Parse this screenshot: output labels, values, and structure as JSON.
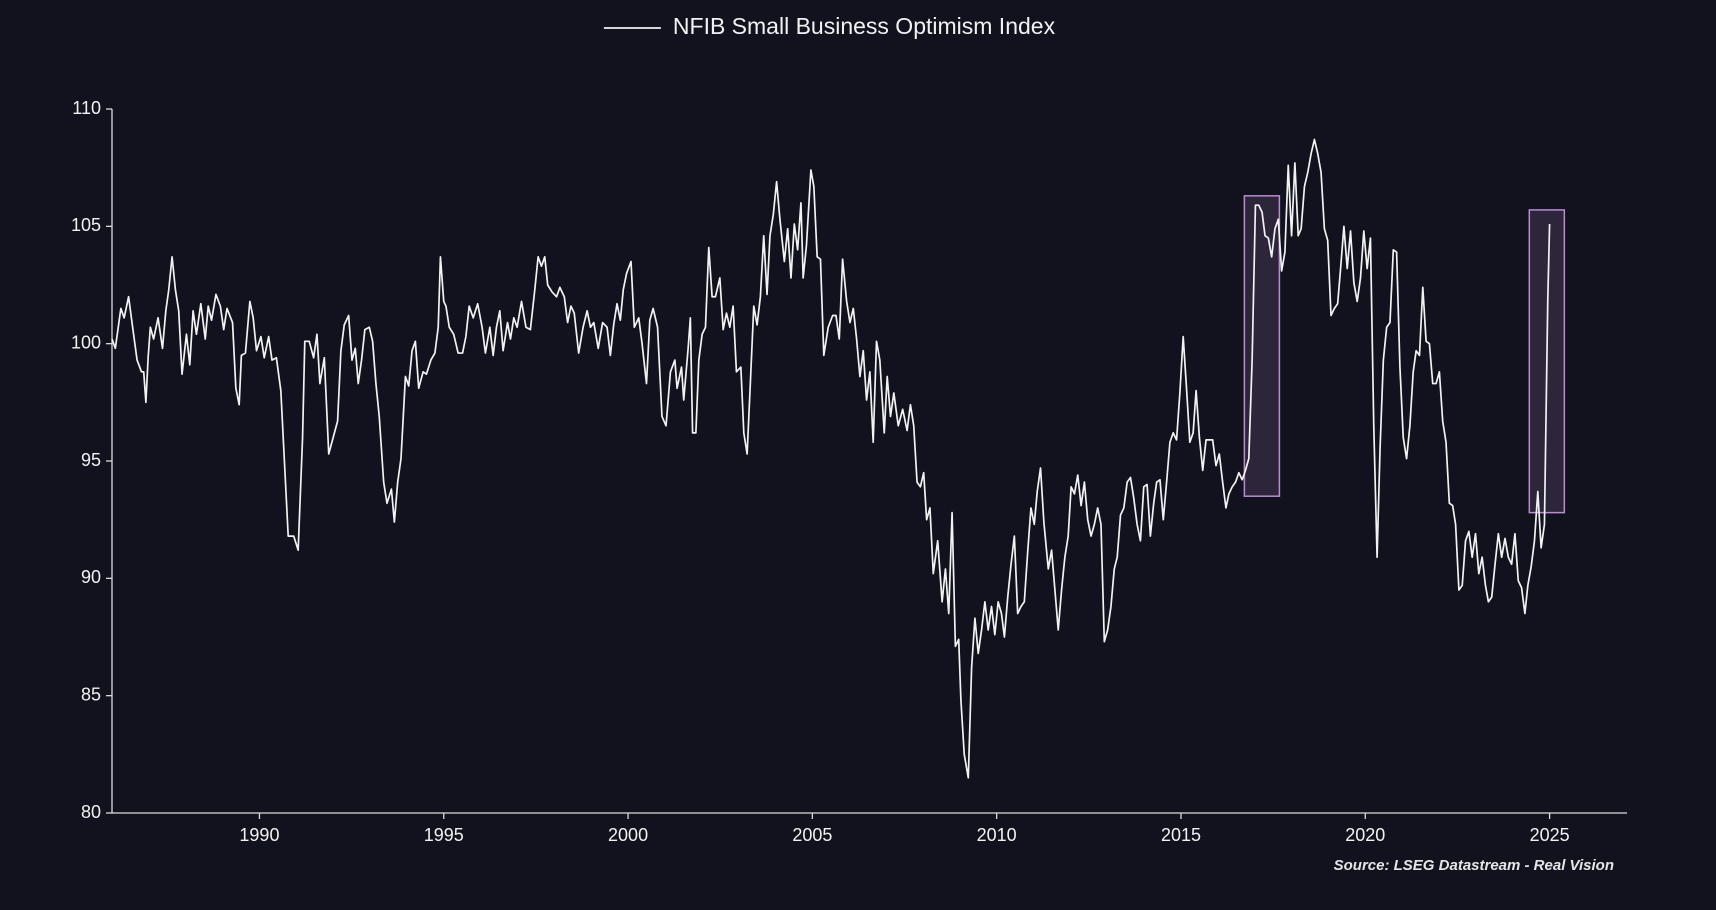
{
  "chart_data": {
    "type": "line",
    "source": "Source: LSEG Datastream - Real Vision",
    "legend_position": "top-center",
    "xlim": [
      1986,
      2027.1
    ],
    "ylim": [
      80,
      110
    ],
    "xticks": [
      1990,
      1995,
      2000,
      2005,
      2010,
      2015,
      2020,
      2025
    ],
    "yticks": [
      80,
      85,
      90,
      95,
      100,
      105,
      110
    ],
    "grid": false,
    "highlights": [
      {
        "xlim": [
          2016.72,
          2017.67
        ],
        "ylim": [
          93.5,
          106.3
        ],
        "color": "#b98ccf"
      },
      {
        "xlim": [
          2024.45,
          2025.4
        ],
        "ylim": [
          92.8,
          105.7
        ],
        "color": "#b98ccf"
      }
    ],
    "x": [
      1986.0,
      1986.09,
      1986.24,
      1986.33,
      1986.45,
      1986.56,
      1986.68,
      1986.8,
      1986.86,
      1986.92,
      1986.98,
      1987.04,
      1987.13,
      1987.25,
      1987.37,
      1987.46,
      1987.54,
      1987.63,
      1987.72,
      1987.81,
      1987.9,
      1988.02,
      1988.11,
      1988.2,
      1988.29,
      1988.41,
      1988.53,
      1988.61,
      1988.7,
      1988.82,
      1988.94,
      1989.03,
      1989.12,
      1989.27,
      1989.36,
      1989.45,
      1989.51,
      1989.62,
      1989.74,
      1989.83,
      1989.92,
      1990.04,
      1990.13,
      1990.25,
      1990.34,
      1990.46,
      1990.58,
      1990.69,
      1990.78,
      1990.93,
      1991.05,
      1991.17,
      1991.23,
      1991.35,
      1991.47,
      1991.56,
      1991.64,
      1991.76,
      1991.88,
      1992.0,
      1992.12,
      1992.21,
      1992.3,
      1992.42,
      1992.51,
      1992.6,
      1992.68,
      1992.77,
      1992.86,
      1992.98,
      1993.07,
      1993.16,
      1993.25,
      1993.37,
      1993.46,
      1993.58,
      1993.66,
      1993.75,
      1993.84,
      1993.96,
      1994.05,
      1994.14,
      1994.23,
      1994.32,
      1994.44,
      1994.53,
      1994.65,
      1994.76,
      1994.85,
      1994.91,
      1995.0,
      1995.06,
      1995.15,
      1995.27,
      1995.39,
      1995.51,
      1995.6,
      1995.69,
      1995.8,
      1995.92,
      1996.04,
      1996.13,
      1996.25,
      1996.34,
      1996.43,
      1996.52,
      1996.61,
      1996.73,
      1996.81,
      1996.9,
      1996.99,
      1997.11,
      1997.23,
      1997.35,
      1997.47,
      1997.56,
      1997.65,
      1997.74,
      1997.82,
      1997.94,
      1998.06,
      1998.15,
      1998.27,
      1998.36,
      1998.45,
      1998.54,
      1998.66,
      1998.78,
      1998.89,
      1998.98,
      1999.07,
      1999.19,
      1999.31,
      1999.43,
      1999.52,
      1999.61,
      1999.7,
      1999.79,
      1999.87,
      1999.96,
      2000.08,
      2000.17,
      2000.29,
      2000.38,
      2000.5,
      2000.59,
      2000.68,
      2000.8,
      2000.92,
      2001.03,
      2001.15,
      2001.27,
      2001.33,
      2001.45,
      2001.51,
      2001.63,
      2001.69,
      2001.75,
      2001.84,
      2001.92,
      2002.01,
      2002.1,
      2002.19,
      2002.28,
      2002.37,
      2002.49,
      2002.58,
      2002.67,
      2002.76,
      2002.85,
      2002.94,
      2003.06,
      2003.14,
      2003.23,
      2003.32,
      2003.41,
      2003.5,
      2003.59,
      2003.68,
      2003.77,
      2003.85,
      2003.94,
      2004.03,
      2004.12,
      2004.24,
      2004.33,
      2004.42,
      2004.51,
      2004.6,
      2004.69,
      2004.75,
      2004.84,
      2004.96,
      2005.04,
      2005.13,
      2005.22,
      2005.31,
      2005.43,
      2005.55,
      2005.64,
      2005.73,
      2005.82,
      2005.93,
      2006.02,
      2006.11,
      2006.2,
      2006.29,
      2006.38,
      2006.47,
      2006.56,
      2006.65,
      2006.74,
      2006.83,
      2006.95,
      2007.03,
      2007.12,
      2007.21,
      2007.33,
      2007.45,
      2007.57,
      2007.66,
      2007.75,
      2007.84,
      2007.93,
      2008.02,
      2008.1,
      2008.19,
      2008.28,
      2008.4,
      2008.52,
      2008.61,
      2008.7,
      2008.79,
      2008.88,
      2008.97,
      2009.03,
      2009.12,
      2009.23,
      2009.32,
      2009.41,
      2009.5,
      2009.59,
      2009.68,
      2009.77,
      2009.86,
      2009.95,
      2010.04,
      2010.13,
      2010.21,
      2010.3,
      2010.39,
      2010.48,
      2010.57,
      2010.66,
      2010.75,
      2010.84,
      2010.93,
      2011.02,
      2011.1,
      2011.19,
      2011.28,
      2011.4,
      2011.49,
      2011.58,
      2011.67,
      2011.76,
      2011.85,
      2011.94,
      2012.02,
      2012.11,
      2012.2,
      2012.29,
      2012.38,
      2012.47,
      2012.56,
      2012.65,
      2012.74,
      2012.83,
      2012.92,
      2013.01,
      2013.1,
      2013.19,
      2013.27,
      2013.36,
      2013.45,
      2013.54,
      2013.63,
      2013.72,
      2013.81,
      2013.9,
      2013.99,
      2014.08,
      2014.17,
      2014.26,
      2014.34,
      2014.43,
      2014.52,
      2014.61,
      2014.7,
      2014.79,
      2014.88,
      2014.97,
      2015.06,
      2015.15,
      2015.24,
      2015.33,
      2015.41,
      2015.5,
      2015.59,
      2015.68,
      2015.77,
      2015.86,
      2015.95,
      2016.04,
      2016.13,
      2016.22,
      2016.3,
      2016.39,
      2016.48,
      2016.57,
      2016.66,
      2016.75,
      2016.84,
      2016.93,
      2017.02,
      2017.11,
      2017.2,
      2017.28,
      2017.37,
      2017.46,
      2017.55,
      2017.64,
      2017.73,
      2017.82,
      2017.91,
      2018.0,
      2018.09,
      2018.18,
      2018.26,
      2018.35,
      2018.44,
      2018.53,
      2018.62,
      2018.71,
      2018.8,
      2018.89,
      2018.98,
      2019.07,
      2019.16,
      2019.25,
      2019.33,
      2019.42,
      2019.51,
      2019.6,
      2019.69,
      2019.78,
      2019.87,
      2019.96,
      2020.05,
      2020.14,
      2020.23,
      2020.32,
      2020.4,
      2020.49,
      2020.58,
      2020.67,
      2020.76,
      2020.85,
      2020.94,
      2021.03,
      2021.12,
      2021.21,
      2021.3,
      2021.38,
      2021.47,
      2021.56,
      2021.65,
      2021.74,
      2021.83,
      2021.92,
      2022.01,
      2022.1,
      2022.19,
      2022.28,
      2022.37,
      2022.45,
      2022.54,
      2022.63,
      2022.72,
      2022.81,
      2022.9,
      2022.99,
      2023.08,
      2023.17,
      2023.26,
      2023.34,
      2023.43,
      2023.52,
      2023.61,
      2023.7,
      2023.79,
      2023.88,
      2023.97,
      2024.06,
      2024.15,
      2024.24,
      2024.33,
      2024.41,
      2024.5,
      2024.59,
      2024.68,
      2024.77,
      2024.86,
      2024.95,
      2025.0
    ],
    "series": [
      {
        "name": "NFIB Small Business Optimism Index",
        "color": "#f2f2f2",
        "values": [
          100.2,
          99.8,
          101.5,
          101.1,
          102.0,
          100.7,
          99.3,
          98.8,
          98.8,
          97.5,
          99.4,
          100.7,
          100.2,
          101.1,
          99.8,
          101.4,
          102.3,
          103.7,
          102.3,
          101.4,
          98.7,
          100.4,
          99.1,
          101.4,
          100.4,
          101.7,
          100.2,
          101.6,
          101.0,
          102.1,
          101.6,
          100.6,
          101.5,
          100.9,
          98.1,
          97.4,
          99.5,
          99.6,
          101.8,
          101.1,
          99.7,
          100.3,
          99.4,
          100.3,
          99.3,
          99.4,
          98.0,
          94.6,
          91.8,
          91.8,
          91.2,
          96.0,
          100.1,
          100.1,
          99.4,
          100.4,
          98.3,
          99.4,
          95.3,
          96.0,
          96.7,
          99.7,
          100.8,
          101.2,
          99.3,
          99.8,
          98.3,
          99.3,
          100.6,
          100.7,
          100.1,
          98.3,
          96.9,
          94.1,
          93.2,
          93.8,
          92.4,
          94.1,
          95.1,
          98.6,
          98.2,
          99.7,
          100.1,
          98.1,
          98.8,
          98.7,
          99.3,
          99.6,
          100.7,
          103.7,
          101.8,
          101.6,
          100.7,
          100.4,
          99.6,
          99.6,
          100.3,
          101.6,
          101.1,
          101.7,
          100.7,
          99.6,
          100.7,
          99.5,
          100.7,
          101.4,
          99.7,
          100.9,
          100.2,
          101.1,
          100.7,
          101.8,
          100.7,
          100.6,
          102.3,
          103.7,
          103.3,
          103.7,
          102.5,
          102.2,
          102.0,
          102.4,
          102.0,
          100.9,
          101.6,
          101.3,
          99.6,
          100.7,
          101.4,
          100.7,
          100.9,
          99.8,
          100.9,
          100.7,
          99.5,
          100.8,
          101.7,
          101.0,
          102.3,
          103.0,
          103.5,
          100.7,
          101.1,
          100.0,
          98.3,
          101.0,
          101.5,
          100.7,
          96.9,
          96.5,
          98.8,
          99.3,
          98.1,
          99.0,
          97.6,
          99.8,
          101.1,
          96.2,
          96.2,
          99.3,
          100.4,
          100.7,
          104.1,
          102.0,
          102.0,
          102.8,
          100.6,
          101.3,
          100.7,
          101.6,
          98.8,
          99.0,
          96.2,
          95.3,
          98.4,
          101.6,
          100.8,
          102.0,
          104.6,
          102.1,
          104.6,
          105.5,
          106.9,
          105.3,
          103.5,
          104.9,
          102.8,
          105.1,
          104.0,
          106.0,
          102.8,
          104.2,
          107.4,
          106.7,
          103.7,
          103.6,
          99.5,
          100.7,
          101.2,
          101.2,
          100.2,
          103.6,
          101.8,
          100.9,
          101.5,
          100.2,
          98.6,
          99.7,
          97.6,
          98.8,
          95.8,
          100.1,
          99.3,
          96.2,
          98.6,
          96.9,
          97.9,
          96.5,
          97.2,
          96.3,
          97.4,
          96.5,
          94.1,
          93.9,
          94.5,
          92.5,
          93.0,
          90.2,
          91.6,
          89.0,
          90.4,
          88.5,
          92.8,
          87.1,
          87.4,
          84.8,
          82.5,
          81.5,
          86.2,
          88.3,
          86.8,
          87.8,
          89.0,
          87.8,
          88.8,
          87.6,
          89.0,
          88.5,
          87.5,
          89.2,
          90.6,
          91.8,
          88.5,
          88.8,
          89.0,
          91.1,
          93.0,
          92.3,
          93.7,
          94.7,
          92.4,
          90.4,
          91.2,
          89.5,
          87.8,
          89.5,
          90.9,
          91.8,
          93.9,
          93.6,
          94.4,
          93.1,
          94.1,
          92.5,
          91.8,
          92.3,
          93.0,
          92.3,
          87.3,
          87.8,
          88.8,
          90.4,
          90.9,
          92.7,
          93.0,
          94.1,
          94.3,
          93.4,
          92.3,
          91.6,
          93.9,
          94.0,
          91.8,
          93.2,
          94.1,
          94.2,
          92.5,
          94.1,
          95.8,
          96.2,
          95.9,
          97.9,
          100.3,
          98.1,
          95.8,
          96.2,
          98.0,
          96.0,
          94.6,
          95.9,
          95.9,
          95.9,
          94.8,
          95.3,
          94.1,
          93.0,
          93.6,
          93.9,
          94.1,
          94.5,
          94.2,
          94.6,
          95.1,
          99.3,
          105.9,
          105.9,
          105.6,
          104.6,
          104.5,
          103.7,
          104.9,
          105.3,
          103.1,
          103.9,
          107.6,
          104.6,
          107.7,
          104.6,
          104.9,
          106.7,
          107.3,
          108.1,
          108.7,
          108.1,
          107.3,
          104.9,
          104.4,
          101.2,
          101.5,
          101.7,
          103.2,
          105.0,
          103.2,
          104.8,
          102.6,
          101.8,
          102.8,
          104.8,
          103.2,
          104.5,
          96.5,
          90.9,
          95.5,
          99.3,
          100.7,
          100.9,
          104.0,
          103.9,
          99.0,
          96.0,
          95.1,
          96.5,
          98.8,
          99.7,
          99.5,
          102.4,
          100.1,
          100.0,
          98.3,
          98.3,
          98.8,
          96.7,
          95.8,
          93.2,
          93.1,
          92.3,
          89.5,
          89.7,
          91.6,
          92.0,
          90.9,
          91.9,
          90.2,
          90.9,
          89.7,
          89.0,
          89.2,
          90.6,
          91.9,
          90.9,
          91.7,
          90.9,
          90.6,
          91.9,
          89.9,
          89.6,
          88.5,
          89.7,
          90.5,
          91.6,
          93.7,
          91.3,
          92.3,
          101.8,
          105.1
        ]
      }
    ]
  }
}
